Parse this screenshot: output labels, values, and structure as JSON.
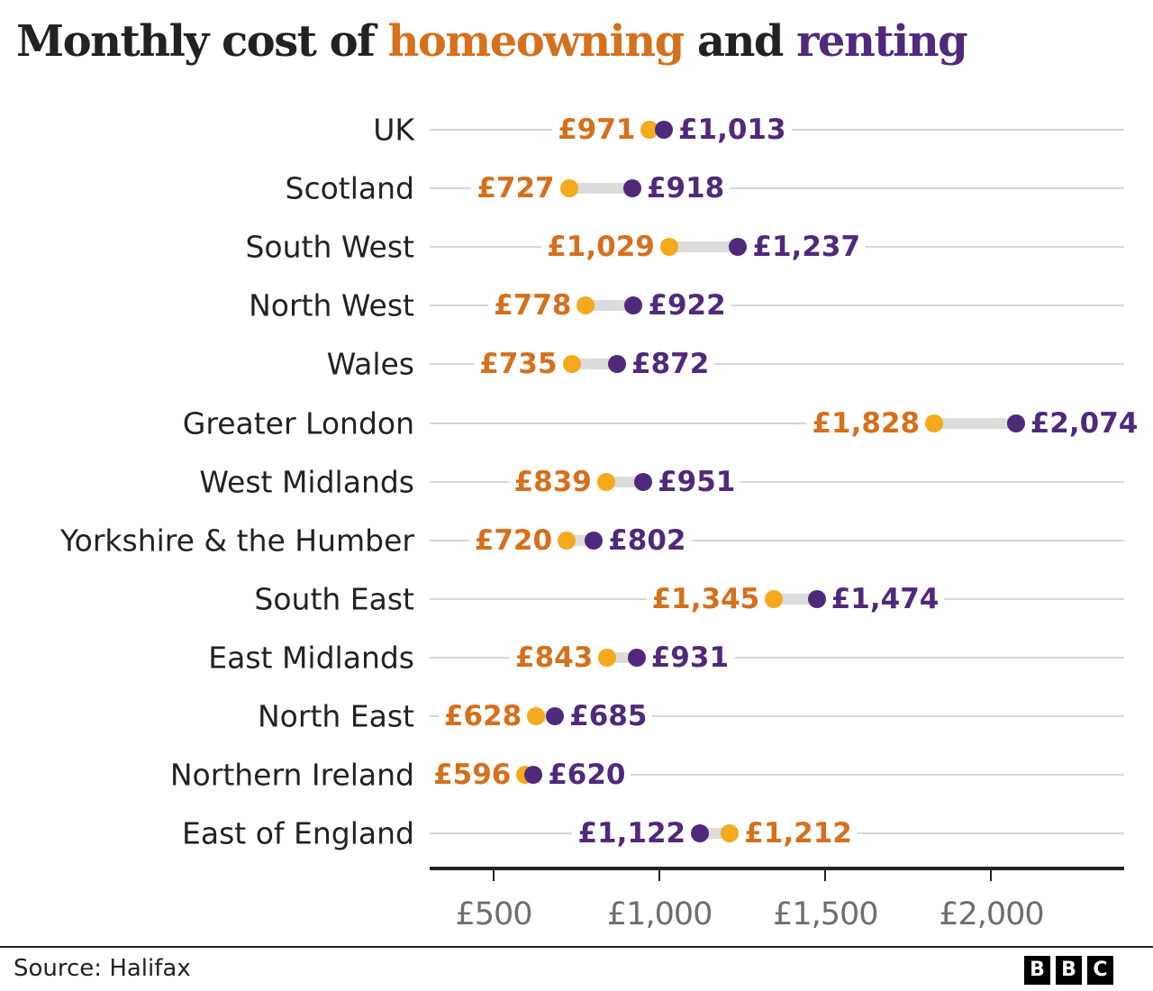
{
  "title": {
    "prefix": "Monthly cost of ",
    "own_word": "homeowning",
    "middle": " and ",
    "rent_word": "renting"
  },
  "colors": {
    "homeowning_dot": "#f5a91d",
    "homeowning_text": "#d5701c",
    "renting": "#4f2a7b",
    "connector": "#dcdcdc",
    "grid": "#d6d6d6"
  },
  "footer": {
    "source": "Source: Halifax",
    "logo_letters": [
      "B",
      "B",
      "C"
    ]
  },
  "axis": {
    "ticks": [
      {
        "value": 500,
        "label": "£500"
      },
      {
        "value": 1000,
        "label": "£1,000"
      },
      {
        "value": 1500,
        "label": "£1,500"
      },
      {
        "value": 2000,
        "label": "£2,000"
      }
    ]
  },
  "chart_data": {
    "type": "dumbbell",
    "title": "Monthly cost of homeowning and renting",
    "xlabel": "",
    "ylabel": "",
    "xlim": [
      320,
      2410
    ],
    "grid": true,
    "legend": "inline in title (homeowning = orange, renting = purple)",
    "categories": [
      "UK",
      "Scotland",
      "South West",
      "North West",
      "Wales",
      "Greater London",
      "West Midlands",
      "Yorkshire & the Humber",
      "South East",
      "East Midlands",
      "North East",
      "Northern Ireland",
      "East of England"
    ],
    "series": [
      {
        "name": "homeowning",
        "values": [
          971,
          727,
          1029,
          778,
          735,
          1828,
          839,
          720,
          1345,
          843,
          628,
          596,
          1212
        ],
        "labels": [
          "£971",
          "£727",
          "£1,029",
          "£778",
          "£735",
          "£1,828",
          "£839",
          "£720",
          "£1,345",
          "£843",
          "£628",
          "£596",
          "£1,212"
        ]
      },
      {
        "name": "renting",
        "values": [
          1013,
          918,
          1237,
          922,
          872,
          2074,
          951,
          802,
          1474,
          931,
          685,
          620,
          1122
        ],
        "labels": [
          "£1,013",
          "£918",
          "£1,237",
          "£922",
          "£872",
          "£2,074",
          "£951",
          "£802",
          "£1,474",
          "£931",
          "£685",
          "£620",
          "£1,122"
        ]
      }
    ],
    "source": "Halifax"
  }
}
